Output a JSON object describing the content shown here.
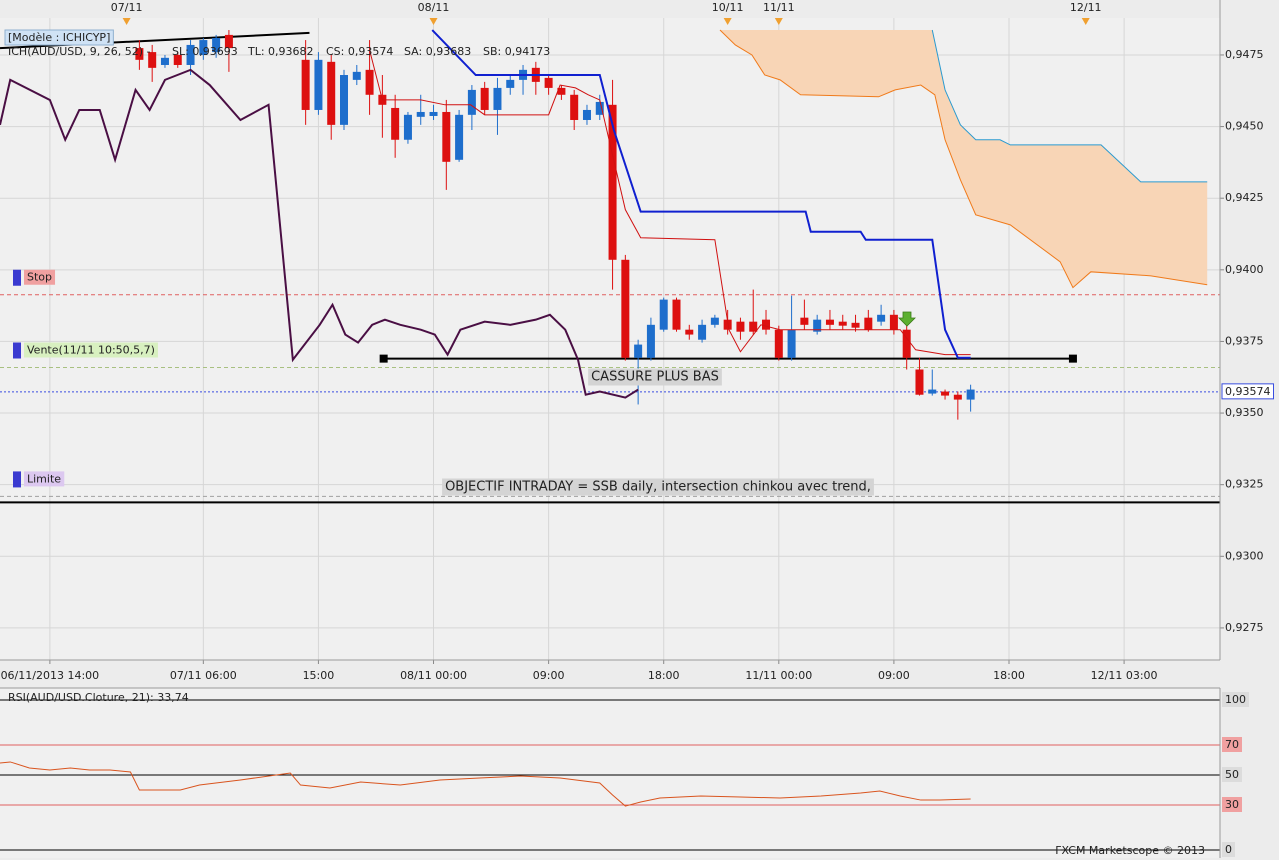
{
  "chart_data": [
    {
      "type": "candlestick",
      "header": "[Modèle : ICHICYP]",
      "legend_title": "ICH(AUD/USD, 9, 26, 52) -",
      "legend_title_color": "#cc0000",
      "x": [
        7,
        8,
        9,
        10,
        11,
        12,
        13,
        14,
        20,
        21,
        22,
        23,
        24,
        25,
        26,
        27,
        28,
        29,
        30,
        31,
        32,
        33,
        34,
        35,
        36,
        37,
        38,
        39,
        40,
        41,
        42,
        43,
        44,
        45,
        46,
        47,
        48,
        49,
        50,
        51,
        52,
        53,
        54,
        55,
        56,
        57,
        58,
        59,
        60,
        61,
        62,
        63,
        64,
        65,
        66,
        67,
        68,
        69,
        70,
        71,
        72
      ],
      "open": [
        0.94774,
        0.9476,
        0.94715,
        0.9475,
        0.94715,
        0.9475,
        0.9476,
        0.9482,
        0.94733,
        0.94558,
        0.94726,
        0.94506,
        0.94663,
        0.94698,
        0.94611,
        0.94565,
        0.94454,
        0.94534,
        0.94537,
        0.94551,
        0.94384,
        0.94541,
        0.94635,
        0.94558,
        0.94635,
        0.94663,
        0.94705,
        0.9467,
        0.94635,
        0.94611,
        0.94523,
        0.94541,
        0.94576,
        0.94035,
        0.93693,
        0.93693,
        0.93791,
        0.93896,
        0.93791,
        0.93756,
        0.93808,
        0.93826,
        0.93819,
        0.93819,
        0.93826,
        0.93791,
        0.93693,
        0.93833,
        0.93784,
        0.93826,
        0.93819,
        0.93815,
        0.93833,
        0.93819,
        0.93843,
        0.93791,
        0.93652,
        0.93568,
        0.93575,
        0.93564,
        0.93547
      ],
      "high": [
        0.94802,
        0.94785,
        0.9475,
        0.9476,
        0.94802,
        0.94809,
        0.9482,
        0.94837,
        0.94802,
        0.9476,
        0.9475,
        0.94698,
        0.94715,
        0.94802,
        0.9468,
        0.94611,
        0.94551,
        0.94611,
        0.94576,
        0.94593,
        0.94558,
        0.94645,
        0.94656,
        0.9467,
        0.9468,
        0.94715,
        0.94726,
        0.9468,
        0.94645,
        0.94628,
        0.94576,
        0.94611,
        0.94663,
        0.94052,
        0.93756,
        0.93833,
        0.93903,
        0.93903,
        0.93808,
        0.93826,
        0.93843,
        0.9386,
        0.93833,
        0.93931,
        0.9386,
        0.93805,
        0.9391,
        0.93896,
        0.93843,
        0.9386,
        0.93843,
        0.93843,
        0.9386,
        0.93878,
        0.9386,
        0.93805,
        0.93693,
        0.93652,
        0.93582,
        0.93575,
        0.93599
      ],
      "low": [
        0.94698,
        0.94656,
        0.94705,
        0.94705,
        0.9468,
        0.94733,
        0.9474,
        0.94691,
        0.94506,
        0.94541,
        0.94454,
        0.94488,
        0.94645,
        0.94541,
        0.94461,
        0.94391,
        0.9444,
        0.94506,
        0.94523,
        0.94279,
        0.94377,
        0.94488,
        0.94541,
        0.94471,
        0.94611,
        0.94611,
        0.94611,
        0.94611,
        0.94593,
        0.94488,
        0.94506,
        0.94523,
        0.93931,
        0.93683,
        0.9353,
        0.93683,
        0.93784,
        0.93784,
        0.93756,
        0.93746,
        0.93798,
        0.93774,
        0.93756,
        0.93774,
        0.93774,
        0.93683,
        0.93683,
        0.93791,
        0.93774,
        0.93791,
        0.93791,
        0.93784,
        0.93784,
        0.93805,
        0.93774,
        0.93652,
        0.93561,
        0.93561,
        0.93547,
        0.93477,
        0.93505
      ],
      "close": [
        0.94733,
        0.94705,
        0.9474,
        0.94715,
        0.94785,
        0.94802,
        0.94809,
        0.94774,
        0.94558,
        0.94733,
        0.94506,
        0.9468,
        0.94691,
        0.94611,
        0.94576,
        0.94454,
        0.94541,
        0.94551,
        0.94551,
        0.94377,
        0.94541,
        0.94628,
        0.94558,
        0.94635,
        0.94663,
        0.94698,
        0.94656,
        0.94635,
        0.94611,
        0.94523,
        0.94558,
        0.94586,
        0.94035,
        0.93693,
        0.93739,
        0.93808,
        0.93896,
        0.93791,
        0.93774,
        0.93808,
        0.93833,
        0.93791,
        0.93784,
        0.93784,
        0.93791,
        0.93693,
        0.93791,
        0.93808,
        0.93826,
        0.93808,
        0.93805,
        0.93798,
        0.93791,
        0.93843,
        0.93791,
        0.93693,
        0.93564,
        0.93582,
        0.93561,
        0.93547,
        0.93582
      ],
      "up_color": "#1e6ecc",
      "down_color": "#dd1010",
      "series": [
        {
          "name": "SL: 0,93693",
          "color": "#d01010",
          "width": 1,
          "x": [
            25.0,
            26.0,
            29.0,
            30.9,
            32.9,
            34.0,
            39.0,
            39.9,
            41.1,
            42.1,
            43.0,
            44.0,
            45.0,
            46.2,
            52.0,
            53.1,
            54.0,
            55.6,
            57.1,
            66.5,
            67.7,
            70.0,
            72.0
          ],
          "values": [
            0.94767,
            0.94593,
            0.94593,
            0.94576,
            0.94576,
            0.94541,
            0.94541,
            0.94645,
            0.94635,
            0.94611,
            0.94593,
            0.94401,
            0.9421,
            0.94112,
            0.94105,
            0.93791,
            0.93714,
            0.93808,
            0.93791,
            0.93791,
            0.93721,
            0.93704,
            0.93704
          ]
        },
        {
          "name": "TL: 0,93682",
          "color": "#1020d0",
          "width": 2,
          "x": [
            29.9,
            33.3,
            43.0,
            44.1,
            46.2,
            59.1,
            59.5,
            63.4,
            63.8,
            69.0,
            70.0,
            71.0,
            72.0
          ],
          "values": [
            0.94837,
            0.9468,
            0.9468,
            0.94488,
            0.94203,
            0.94203,
            0.94133,
            0.94133,
            0.94105,
            0.94105,
            0.93791,
            0.93693,
            0.93693
          ]
        },
        {
          "name": "CS: 0,93574",
          "color": "#4a0f44",
          "width": 2,
          "x": [
            -3.9,
            -3.1,
            0,
            1.2,
            2.3,
            3.9,
            5.1,
            6.7,
            7.8,
            9.0,
            11.0,
            12.5,
            14.9,
            17.1,
            19.0,
            21.1,
            22.1,
            23.1,
            24.1,
            25.2,
            26.2,
            27.4,
            29.0,
            30.1,
            31.1,
            32.1,
            34.0,
            36.0,
            38.0,
            39.1,
            40.3,
            41.3,
            41.9,
            43.0,
            45.0,
            46.0
          ],
          "values": [
            0.94506,
            0.94663,
            0.94593,
            0.94454,
            0.94558,
            0.94558,
            0.94384,
            0.94628,
            0.94558,
            0.94663,
            0.94698,
            0.94645,
            0.94523,
            0.94576,
            0.93686,
            0.93808,
            0.93878,
            0.93774,
            0.93746,
            0.93808,
            0.93826,
            0.93808,
            0.93791,
            0.93774,
            0.93704,
            0.93791,
            0.93819,
            0.93808,
            0.93826,
            0.93843,
            0.93791,
            0.93686,
            0.93564,
            0.93575,
            0.93554,
            0.93582
          ]
        },
        {
          "name": "SA: 0,93683",
          "color": "#f07a1a",
          "width": 1,
          "x": [
            52.4,
            53.6,
            54.9,
            55.9,
            57.1,
            58.7,
            64.8,
            66.1,
            68.1,
            69.2,
            70.0,
            71.2,
            72.4,
            75.1,
            79.0,
            80.0,
            81.4,
            86.1,
            90.5
          ],
          "values": [
            0.94837,
            0.94785,
            0.9475,
            0.9468,
            0.94663,
            0.94611,
            0.94604,
            0.94628,
            0.94645,
            0.94611,
            0.94454,
            0.94314,
            0.94192,
            0.94157,
            0.94028,
            0.93938,
            0.93993,
            0.93979,
            0.93948
          ]
        },
        {
          "name": "SB: 0,94173",
          "color": "#2a9ad0",
          "width": 1,
          "x": [
            69.0,
            70.0,
            71.2,
            72.4,
            74.3,
            75.1,
            82.2,
            85.3,
            90.5
          ],
          "values": [
            0.94837,
            0.94628,
            0.94506,
            0.94454,
            0.94454,
            0.94436,
            0.94436,
            0.94307,
            0.94307
          ]
        }
      ],
      "cloud_color": "#f8d5b6",
      "xlim": [
        -3.9,
        91.5
      ],
      "xticks": [
        {
          "value": 0,
          "label": "06/11/2013 14:00"
        },
        {
          "value": 12,
          "label": "07/11 06:00"
        },
        {
          "value": 21,
          "label": "15:00"
        },
        {
          "value": 30,
          "label": "08/11 00:00"
        },
        {
          "value": 39,
          "label": "09:00"
        },
        {
          "value": 48,
          "label": "18:00"
        },
        {
          "value": 57,
          "label": "11/11 00:00"
        },
        {
          "value": 66,
          "label": "09:00"
        },
        {
          "value": 75,
          "label": "18:00"
        },
        {
          "value": 84,
          "label": "12/11 03:00"
        }
      ],
      "top_markers": [
        {
          "value": 6,
          "label": "07/11"
        },
        {
          "value": 30,
          "label": "08/11"
        },
        {
          "value": 53,
          "label": "10/11"
        },
        {
          "value": 57,
          "label": "11/11"
        },
        {
          "value": 81,
          "label": "12/11"
        }
      ],
      "ylim": [
        0.92638,
        0.94879
      ],
      "yticks": [
        {
          "value": 0.9275,
          "label": "0,9275"
        },
        {
          "value": 0.93,
          "label": "0,9300"
        },
        {
          "value": 0.9325,
          "label": "0,9325"
        },
        {
          "value": 0.935,
          "label": "0,9350"
        },
        {
          "value": 0.9375,
          "label": "0,9375"
        },
        {
          "value": 0.94,
          "label": "0,9400"
        },
        {
          "value": 0.9425,
          "label": "0,9425"
        },
        {
          "value": 0.945,
          "label": "0,9450"
        },
        {
          "value": 0.9475,
          "label": "0,9475"
        }
      ],
      "grid": true,
      "levels": [
        {
          "name": "Stop",
          "value": 0.93913,
          "color": "#e06060",
          "fill": "#f0a0a0"
        },
        {
          "name": "Vente(11/11 10:50,5,7)",
          "value": 0.93659,
          "color": "#a8c080",
          "fill": "#d8f0c0"
        },
        {
          "name": "Limite",
          "value": 0.93209,
          "color": "#a0a0a0",
          "fill": "#dcc8f0"
        }
      ],
      "price_line": {
        "value": 0.93574,
        "label": "0,93574",
        "color": "#3a4ee0"
      },
      "trend_lines": [
        {
          "x": [
            -3.9,
            20.3
          ],
          "y": [
            0.94774,
            0.94827
          ],
          "markers": false
        },
        {
          "x": [
            26.1,
            80.0
          ],
          "y": [
            0.9369,
            0.9369
          ],
          "markers": true
        },
        {
          "x": [
            -3.9,
            91.5
          ],
          "y": [
            0.93188,
            0.93188
          ],
          "markers": false
        }
      ],
      "annotations": [
        "CASSURE PLUS BAS",
        "OBJECTIF INTRADAY = SSB daily, intersection chinkou avec trend,"
      ]
    },
    {
      "type": "line",
      "title": "RSI(AUD/USD.Cloture, 21): 33,74",
      "color": "#d9541e",
      "x": [
        -3.9,
        -3.1,
        -1.6,
        0,
        1.6,
        3.1,
        4.7,
        6.3,
        7.0,
        10.2,
        11.7,
        14.9,
        18.8,
        19.6,
        21.9,
        24.3,
        27.4,
        30.5,
        33.6,
        36.8,
        39.9,
        43.0,
        44.0,
        45.0,
        46.2,
        47.7,
        50.9,
        54.0,
        57.1,
        60.3,
        63.4,
        64.9,
        66.5,
        68.1,
        69.6,
        72.0
      ],
      "values": [
        58,
        58.7,
        54.7,
        53.3,
        54.7,
        53.3,
        53.3,
        52,
        40,
        40,
        43.3,
        46.7,
        51.3,
        43.3,
        41.3,
        45.3,
        43.3,
        46.7,
        48,
        49.3,
        48,
        44.7,
        36.7,
        29.3,
        32,
        34.7,
        36,
        35.3,
        34.7,
        36,
        38,
        39.3,
        36,
        33.3,
        33.3,
        34
      ],
      "xlim": [
        -3.9,
        91.5
      ],
      "ylim": [
        -5.33,
        108
      ],
      "yticks": [
        0,
        30,
        50,
        70,
        100
      ],
      "tick_colors": [
        "#000000",
        "#e06060",
        "#000000",
        "#e06060",
        "#000000"
      ],
      "footer": "FXCM Marketscope © 2013"
    }
  ]
}
